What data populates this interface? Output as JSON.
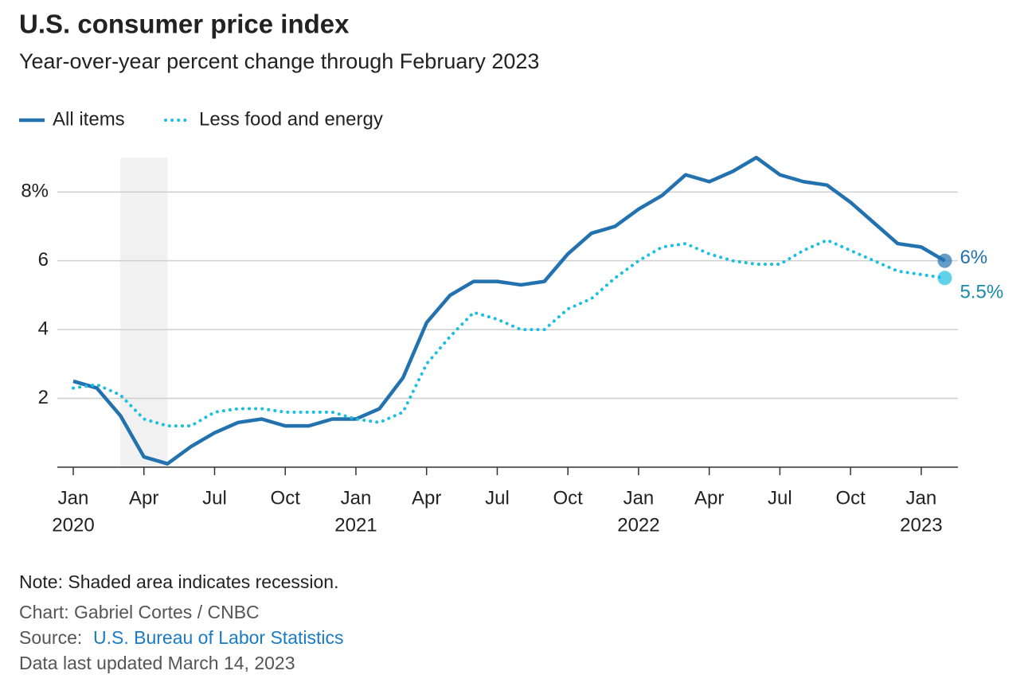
{
  "chart_data": {
    "type": "line",
    "title": "U.S. consumer price index",
    "subtitle": "Year-over-year percent change through February 2023",
    "x": [
      "2020-01",
      "2020-02",
      "2020-03",
      "2020-04",
      "2020-05",
      "2020-06",
      "2020-07",
      "2020-08",
      "2020-09",
      "2020-10",
      "2020-11",
      "2020-12",
      "2021-01",
      "2021-02",
      "2021-03",
      "2021-04",
      "2021-05",
      "2021-06",
      "2021-07",
      "2021-08",
      "2021-09",
      "2021-10",
      "2021-11",
      "2021-12",
      "2022-01",
      "2022-02",
      "2022-03",
      "2022-04",
      "2022-05",
      "2022-06",
      "2022-07",
      "2022-08",
      "2022-09",
      "2022-10",
      "2022-11",
      "2022-12",
      "2023-01",
      "2023-02"
    ],
    "series": [
      {
        "name": "All items",
        "color": "#2372b0",
        "style": "solid",
        "values": [
          2.5,
          2.3,
          1.5,
          0.3,
          0.1,
          0.6,
          1.0,
          1.3,
          1.4,
          1.2,
          1.2,
          1.4,
          1.4,
          1.7,
          2.6,
          4.2,
          5.0,
          5.4,
          5.4,
          5.3,
          5.4,
          6.2,
          6.8,
          7.0,
          7.5,
          7.9,
          8.5,
          8.3,
          8.6,
          9.0,
          8.5,
          8.3,
          8.2,
          7.7,
          7.1,
          6.5,
          6.4,
          6.0
        ],
        "value_labels": [
          null,
          null,
          null,
          null,
          null,
          null,
          null,
          null,
          null,
          null,
          null,
          null,
          null,
          null,
          null,
          null,
          null,
          null,
          null,
          null,
          null,
          null,
          null,
          null,
          null,
          null,
          null,
          null,
          null,
          null,
          null,
          null,
          null,
          null,
          null,
          null,
          null,
          "6%"
        ]
      },
      {
        "name": "Less food and energy",
        "color": "#1cbfe0",
        "style": "dotted",
        "values": [
          2.3,
          2.4,
          2.1,
          1.4,
          1.2,
          1.2,
          1.6,
          1.7,
          1.7,
          1.6,
          1.6,
          1.6,
          1.4,
          1.3,
          1.6,
          3.0,
          3.8,
          4.5,
          4.3,
          4.0,
          4.0,
          4.6,
          4.9,
          5.5,
          6.0,
          6.4,
          6.5,
          6.2,
          6.0,
          5.9,
          5.9,
          6.3,
          6.6,
          6.3,
          6.0,
          5.7,
          5.6,
          5.5
        ],
        "value_labels": [
          null,
          null,
          null,
          null,
          null,
          null,
          null,
          null,
          null,
          null,
          null,
          null,
          null,
          null,
          null,
          null,
          null,
          null,
          null,
          null,
          null,
          null,
          null,
          null,
          null,
          null,
          null,
          null,
          null,
          null,
          null,
          null,
          null,
          null,
          null,
          null,
          null,
          "5.5%"
        ]
      }
    ],
    "ylim": [
      0,
      9
    ],
    "yticks": [
      {
        "value": 2,
        "label": "2"
      },
      {
        "value": 4,
        "label": "4"
      },
      {
        "value": 6,
        "label": "6"
      },
      {
        "value": 8,
        "label": "8%"
      }
    ],
    "xticks": [
      {
        "value": "2020-01",
        "label": "Jan"
      },
      {
        "value": "2020-04",
        "label": "Apr"
      },
      {
        "value": "2020-07",
        "label": "Jul"
      },
      {
        "value": "2020-10",
        "label": "Oct"
      },
      {
        "value": "2021-01",
        "label": "Jan"
      },
      {
        "value": "2021-04",
        "label": "Apr"
      },
      {
        "value": "2021-07",
        "label": "Jul"
      },
      {
        "value": "2021-10",
        "label": "Oct"
      },
      {
        "value": "2022-01",
        "label": "Jan"
      },
      {
        "value": "2022-04",
        "label": "Apr"
      },
      {
        "value": "2022-07",
        "label": "Jul"
      },
      {
        "value": "2022-10",
        "label": "Oct"
      },
      {
        "value": "2023-01",
        "label": "Jan"
      }
    ],
    "xtick_years": [
      {
        "value": "2020-01",
        "label": "2020"
      },
      {
        "value": "2021-01",
        "label": "2021"
      },
      {
        "value": "2022-01",
        "label": "2022"
      },
      {
        "value": "2023-01",
        "label": "2023"
      }
    ],
    "shaded": [
      "2020-03",
      "2020-05"
    ],
    "grid": true,
    "note": "Note: Shaded area indicates recession.",
    "credit": "Chart: Gabriel Cortes / CNBC",
    "source_prefix": "Source:",
    "source": "U.S. Bureau of Labor Statistics",
    "updated": "Data last updated March 14, 2023"
  }
}
